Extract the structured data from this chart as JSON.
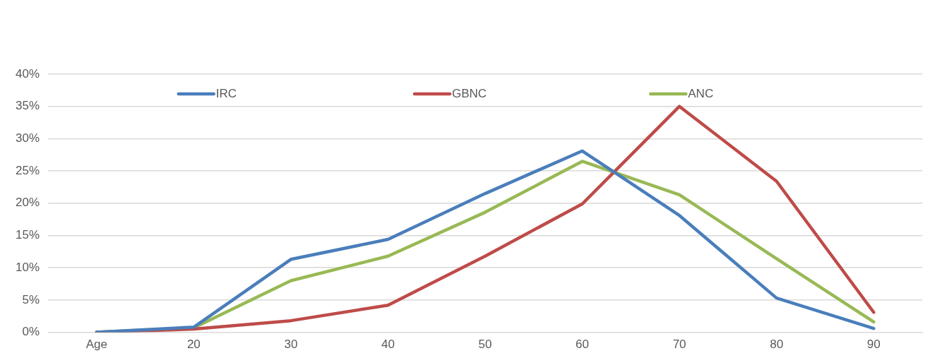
{
  "chart_data": {
    "type": "line",
    "categories": [
      "Age",
      "20",
      "30",
      "40",
      "50",
      "60",
      "70",
      "80",
      "90"
    ],
    "series": [
      {
        "name": "IRC",
        "color": "#4a7ebb",
        "values": [
          0,
          0.8,
          11.3,
          14.4,
          21.5,
          28.1,
          18.1,
          5.3,
          0.6
        ]
      },
      {
        "name": "GBNC",
        "color": "#be4b48",
        "values": [
          0,
          0.5,
          1.8,
          4.2,
          11.8,
          19.9,
          35,
          23.4,
          3.1
        ]
      },
      {
        "name": "ANC",
        "color": "#98b954",
        "values": [
          0,
          0.7,
          8,
          11.8,
          18.6,
          26.5,
          21.3,
          11.4,
          1.6
        ]
      }
    ],
    "ylim": [
      0,
      40
    ],
    "yticks": [
      {
        "value": 0,
        "label": "0%"
      },
      {
        "value": 5,
        "label": "5%"
      },
      {
        "value": 10,
        "label": "10%"
      },
      {
        "value": 15,
        "label": "15%"
      },
      {
        "value": 20,
        "label": "20%"
      },
      {
        "value": 25,
        "label": "25%"
      },
      {
        "value": 30,
        "label": "30%"
      },
      {
        "value": 35,
        "label": "35%"
      },
      {
        "value": 40,
        "label": "40%"
      }
    ],
    "grid": "y",
    "legend": "top",
    "marker": "none",
    "line_style": "solid"
  }
}
